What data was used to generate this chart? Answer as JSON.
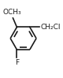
{
  "bg_color": "#ffffff",
  "line_color": "#1a1a1a",
  "line_width": 1.2,
  "text_OCH3": "OCH₃",
  "text_CH2Cl": "CH₂Cl",
  "text_F": "F",
  "font_size": 6.5
}
